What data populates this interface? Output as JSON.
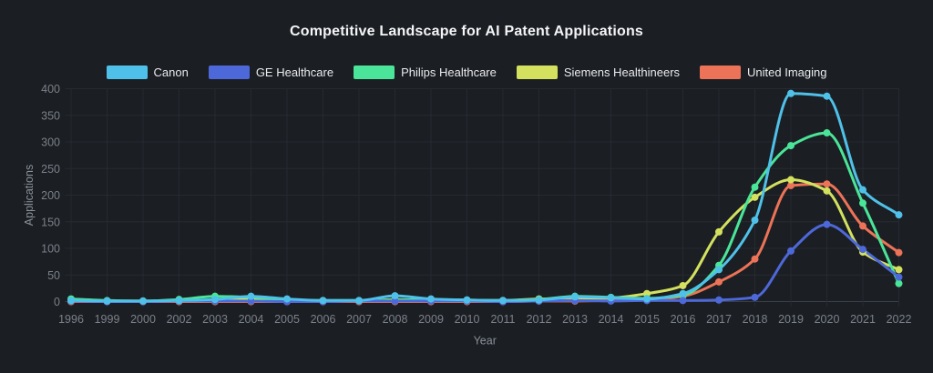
{
  "chart_data": {
    "type": "line",
    "title": "Competitive Landscape for AI Patent Applications",
    "xlabel": "Year",
    "ylabel": "Applications",
    "ylim": [
      0,
      400
    ],
    "yticks": [
      0,
      50,
      100,
      150,
      200,
      250,
      300,
      350,
      400
    ],
    "grid": true,
    "legend_position": "top",
    "line_width": 3,
    "point_radius": 4,
    "categories": [
      "1996",
      "1999",
      "2000",
      "2002",
      "2003",
      "2004",
      "2005",
      "2006",
      "2007",
      "2008",
      "2009",
      "2010",
      "2011",
      "2012",
      "2013",
      "2014",
      "2015",
      "2016",
      "2017",
      "2018",
      "2019",
      "2020",
      "2021",
      "2022"
    ],
    "series": [
      {
        "name": "Canon",
        "color": "#4fc1e9",
        "values": [
          2,
          1,
          1,
          2,
          4,
          10,
          5,
          2,
          2,
          11,
          5,
          3,
          2,
          3,
          9,
          7,
          5,
          15,
          60,
          153,
          391,
          386,
          210,
          163
        ]
      },
      {
        "name": "GE Healthcare",
        "color": "#4d68d8",
        "values": [
          1,
          0,
          0,
          1,
          1,
          1,
          0,
          0,
          1,
          1,
          1,
          1,
          0,
          1,
          2,
          1,
          2,
          2,
          3,
          8,
          95,
          145,
          98,
          46
        ]
      },
      {
        "name": "Philips Healthcare",
        "color": "#4ae598",
        "values": [
          5,
          2,
          1,
          4,
          10,
          8,
          3,
          2,
          2,
          3,
          4,
          3,
          2,
          4,
          10,
          8,
          6,
          12,
          68,
          215,
          293,
          317,
          185,
          34
        ]
      },
      {
        "name": "Siemens Healthineers",
        "color": "#d3e15f",
        "values": [
          1,
          1,
          1,
          1,
          2,
          4,
          2,
          1,
          1,
          4,
          2,
          2,
          2,
          5,
          6,
          7,
          15,
          30,
          131,
          196,
          229,
          208,
          93,
          60
        ]
      },
      {
        "name": "United Imaging",
        "color": "#ec7357",
        "values": [
          0,
          0,
          0,
          0,
          0,
          0,
          0,
          0,
          0,
          0,
          0,
          0,
          0,
          1,
          1,
          2,
          3,
          10,
          37,
          80,
          218,
          221,
          142,
          92
        ]
      }
    ]
  },
  "theme": {
    "background": "#1b1e23",
    "grid_color": "#262b31",
    "zero_line_color": "#3a4047",
    "tick_text_color": "#7b8189",
    "axis_title_color": "#8b9199",
    "title_color": "#f4f5f7",
    "legend_text_color": "#e8eaec"
  }
}
